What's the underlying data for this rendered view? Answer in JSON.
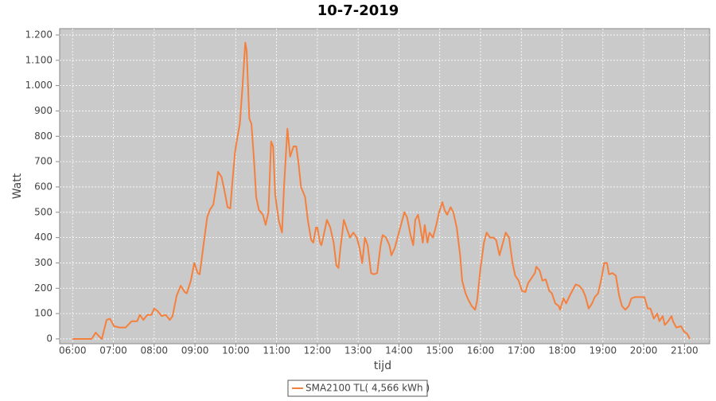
{
  "chart_data": {
    "type": "line",
    "title": "10-7-2019",
    "x_label": "tijd",
    "y_label": "Watt",
    "xlim": [
      "05:41",
      "21:37"
    ],
    "xticks": [
      "06:00",
      "07:00",
      "08:00",
      "09:00",
      "10:00",
      "11:00",
      "12:00",
      "13:00",
      "14:00",
      "15:00",
      "16:00",
      "17:00",
      "18:00",
      "19:00",
      "20:00",
      "21:00"
    ],
    "ylim": [
      -19,
      1225
    ],
    "yticks": [
      0,
      100,
      200,
      300,
      400,
      500,
      600,
      700,
      800,
      900,
      {
        "value": 1000,
        "label": "1.000"
      },
      {
        "value": 1100,
        "label": "1.100"
      },
      {
        "value": 1200,
        "label": "1.200"
      }
    ],
    "grid": true,
    "x": [
      "06:00",
      "06:28",
      "06:34",
      "06:39",
      "06:43",
      "06:50",
      "06:55",
      "07:01",
      "07:09",
      "07:18",
      "07:27",
      "07:35",
      "07:39",
      "07:44",
      "07:50",
      "07:56",
      "08:00",
      "08:05",
      "08:11",
      "08:17",
      "08:23",
      "08:27",
      "08:33",
      "08:39",
      "08:45",
      "08:48",
      "08:54",
      "08:59",
      "09:04",
      "09:07",
      "09:13",
      "09:18",
      "09:22",
      "09:27",
      "09:31",
      "09:34",
      "09:39",
      "09:43",
      "09:48",
      "09:52",
      "09:55",
      "09:59",
      "10:02",
      "10:06",
      "10:10",
      "10:14",
      "10:16",
      "10:20",
      "10:23",
      "10:27",
      "10:30",
      "10:34",
      "10:40",
      "10:44",
      "10:48",
      "10:52",
      "10:55",
      "10:58",
      "11:03",
      "11:08",
      "11:11",
      "11:16",
      "11:20",
      "11:25",
      "11:29",
      "11:32",
      "11:36",
      "11:42",
      "11:46",
      "11:51",
      "11:54",
      "11:58",
      "12:00",
      "12:04",
      "12:06",
      "12:11",
      "12:14",
      "12:19",
      "12:24",
      "12:28",
      "12:31",
      "12:34",
      "12:39",
      "12:44",
      "12:48",
      "12:53",
      "12:58",
      "13:02",
      "13:06",
      "13:10",
      "13:14",
      "13:19",
      "13:23",
      "13:28",
      "13:33",
      "13:36",
      "13:41",
      "13:46",
      "13:49",
      "13:54",
      "13:58",
      "14:04",
      "14:08",
      "14:12",
      "14:17",
      "14:21",
      "14:24",
      "14:28",
      "14:31",
      "14:35",
      "14:38",
      "14:42",
      "14:45",
      "14:50",
      "14:55",
      "14:59",
      "15:04",
      "15:07",
      "15:11",
      "15:16",
      "15:20",
      "15:25",
      "15:30",
      "15:33",
      "15:38",
      "15:42",
      "15:47",
      "15:52",
      "15:55",
      "16:00",
      "16:05",
      "16:09",
      "16:14",
      "16:19",
      "16:23",
      "16:28",
      "16:33",
      "16:37",
      "16:42",
      "16:47",
      "16:51",
      "16:56",
      "17:01",
      "17:06",
      "17:10",
      "17:15",
      "17:20",
      "17:22",
      "17:27",
      "17:31",
      "17:36",
      "17:41",
      "17:45",
      "17:50",
      "17:55",
      "17:57",
      "18:02",
      "18:06",
      "18:11",
      "18:16",
      "18:20",
      "18:25",
      "18:30",
      "18:34",
      "18:39",
      "18:44",
      "18:48",
      "18:53",
      "18:58",
      "19:02",
      "19:06",
      "19:09",
      "19:14",
      "19:19",
      "19:24",
      "19:28",
      "19:33",
      "19:38",
      "19:42",
      "19:47",
      "19:52",
      "19:56",
      "20:01",
      "20:06",
      "20:10",
      "20:15",
      "20:20",
      "20:23",
      "20:28",
      "20:31",
      "20:36",
      "20:41",
      "20:43",
      "20:48",
      "20:55",
      "20:59",
      "21:04",
      "21:08"
    ],
    "series": [
      {
        "name": "SMA2100 TL( 4,566 kWh )",
        "color": "#f5803e",
        "values": [
          0,
          0,
          25,
          10,
          0,
          75,
          80,
          50,
          45,
          45,
          70,
          70,
          95,
          75,
          95,
          95,
          120,
          110,
          90,
          95,
          75,
          90,
          170,
          210,
          185,
          180,
          230,
          300,
          260,
          255,
          380,
          480,
          510,
          530,
          600,
          660,
          640,
          590,
          520,
          515,
          620,
          740,
          790,
          850,
          1000,
          1170,
          1140,
          870,
          850,
          700,
          560,
          510,
          490,
          450,
          500,
          780,
          760,
          570,
          470,
          420,
          600,
          830,
          720,
          760,
          760,
          700,
          600,
          560,
          470,
          390,
          380,
          440,
          440,
          380,
          370,
          430,
          470,
          440,
          380,
          290,
          280,
          360,
          470,
          430,
          400,
          420,
          400,
          360,
          300,
          400,
          370,
          260,
          255,
          260,
          370,
          410,
          400,
          370,
          330,
          360,
          400,
          460,
          500,
          480,
          410,
          370,
          470,
          490,
          450,
          380,
          450,
          380,
          420,
          400,
          450,
          500,
          540,
          510,
          490,
          520,
          500,
          440,
          330,
          230,
          180,
          155,
          130,
          115,
          150,
          280,
          380,
          420,
          400,
          400,
          390,
          330,
          380,
          420,
          400,
          300,
          250,
          230,
          190,
          185,
          220,
          240,
          260,
          285,
          270,
          230,
          235,
          190,
          180,
          140,
          130,
          115,
          160,
          140,
          170,
          195,
          215,
          210,
          195,
          170,
          120,
          140,
          165,
          180,
          240,
          300,
          300,
          255,
          260,
          250,
          170,
          130,
          115,
          130,
          160,
          165,
          165,
          165,
          165,
          120,
          120,
          80,
          100,
          70,
          90,
          55,
          70,
          90,
          70,
          45,
          50,
          30,
          20,
          0
        ]
      }
    ]
  }
}
